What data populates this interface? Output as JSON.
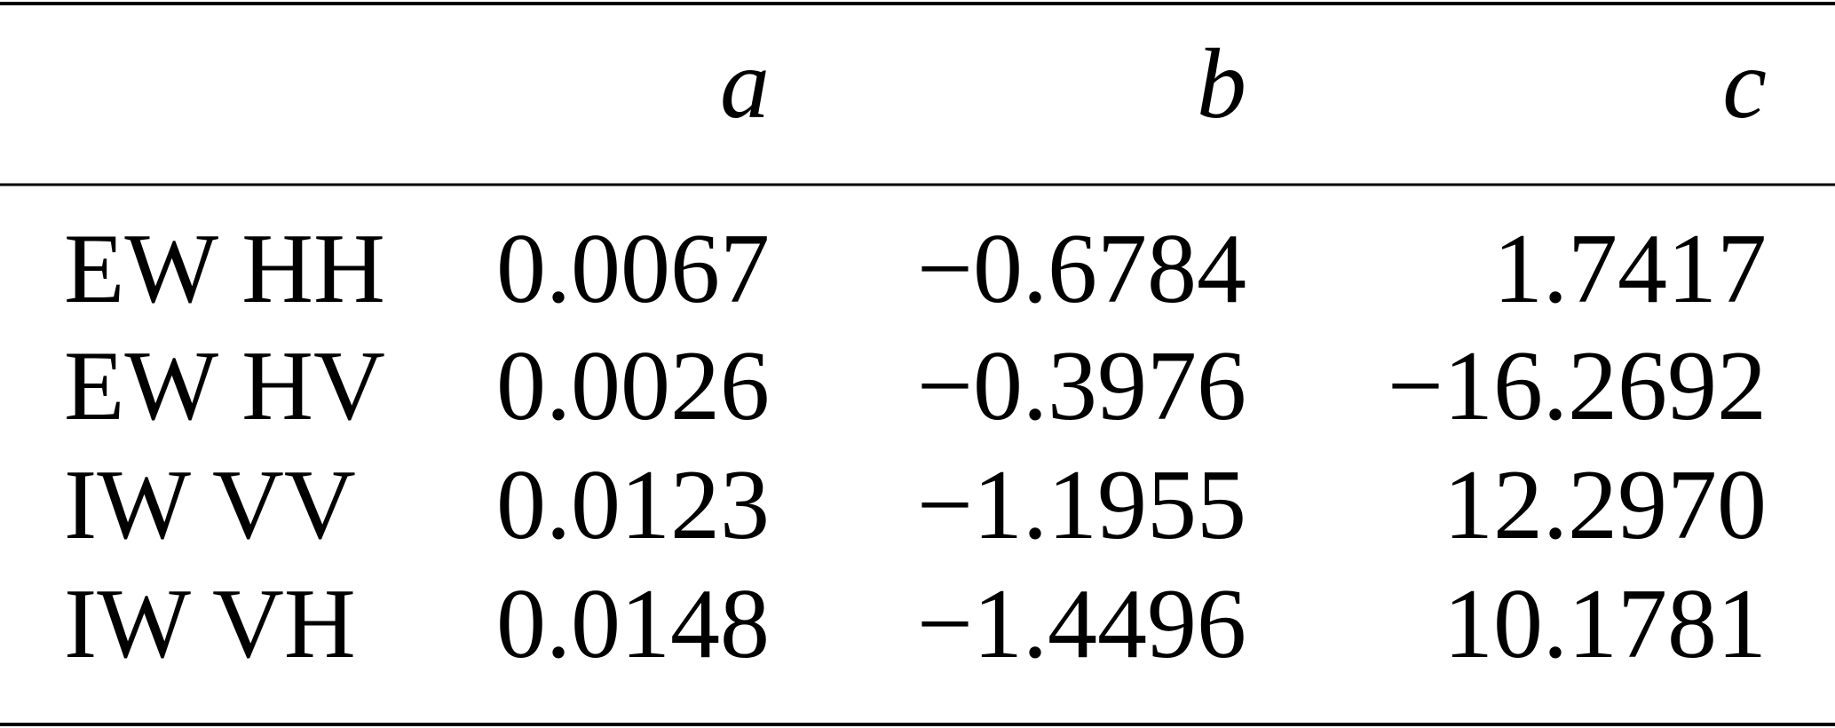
{
  "table": {
    "columns": [
      "a",
      "b",
      "c"
    ],
    "rows": [
      [
        "EW HH",
        "0.0067",
        "−0.6784",
        "1.7417"
      ],
      [
        "EW HV",
        "0.0026",
        "−0.3976",
        "−16.2692"
      ],
      [
        "IW VV",
        "0.0123",
        "−1.1955",
        "12.2970"
      ],
      [
        "IW VH",
        "0.0148",
        "−1.4496",
        "10.1781"
      ]
    ]
  }
}
